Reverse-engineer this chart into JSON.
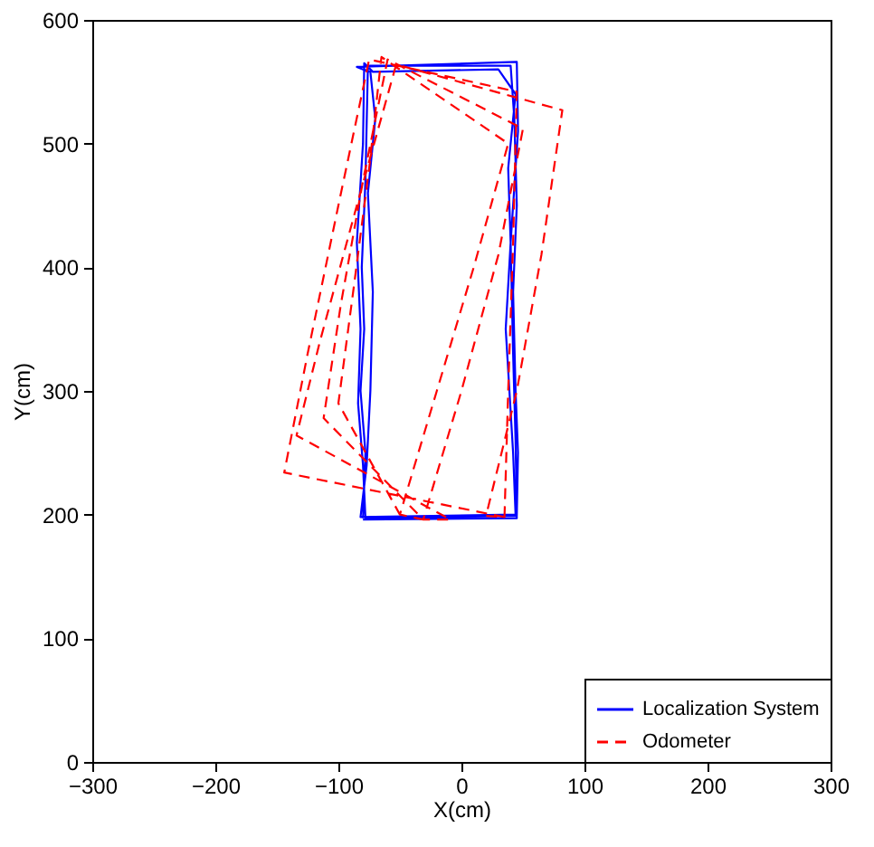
{
  "chart_data": {
    "type": "line",
    "xlabel": "X(cm)",
    "ylabel": "Y(cm)",
    "xlim": [
      -300,
      300
    ],
    "ylim": [
      0,
      600
    ],
    "xticks": [
      -300,
      -200,
      -100,
      0,
      100,
      200,
      300
    ],
    "yticks": [
      0,
      100,
      200,
      300,
      400,
      500,
      600
    ],
    "grid": false,
    "legend": "bottom right",
    "series": [
      {
        "name": "Localization System",
        "color": "#0000ff",
        "line_style": "solid",
        "x": [
          -80,
          -78,
          -82,
          -79,
          -81,
          -78,
          -76,
          40,
          43,
          45,
          42,
          44,
          46,
          45,
          -78,
          -80,
          -84,
          -82,
          -85,
          -80,
          -79,
          -72,
          30,
          44,
          38,
          40,
          36,
          42,
          44,
          -82,
          -77,
          -74,
          -72,
          -76,
          -70,
          -74,
          -80,
          -85,
          45,
          46,
          40,
          42,
          44,
          45,
          -80
        ],
        "values": [
          197,
          250,
          300,
          350,
          400,
          470,
          563,
          563,
          520,
          450,
          380,
          300,
          250,
          199,
          197,
          240,
          290,
          350,
          420,
          500,
          565,
          558,
          560,
          540,
          480,
          420,
          350,
          250,
          200,
          198,
          240,
          300,
          380,
          460,
          520,
          558,
          560,
          562,
          566,
          510,
          420,
          330,
          260,
          197,
          196
        ]
      },
      {
        "name": "Odometer",
        "color": "#ff0000",
        "line_style": "dashed",
        "x": [
          35,
          38,
          42,
          45,
          -75,
          -100,
          -125,
          -144,
          35,
          20,
          45,
          65,
          82,
          -53,
          -85,
          -115,
          -134,
          -9,
          -31,
          0,
          30,
          50,
          -60,
          -80,
          -98,
          -112,
          -31,
          -50,
          -20,
          10,
          38,
          -65,
          -75,
          -88,
          -100,
          -50
        ],
        "values": [
          198,
          300,
          420,
          542,
          568,
          450,
          330,
          234,
          198,
          199,
          300,
          410,
          527,
          564,
          450,
          340,
          264,
          196,
          196,
          300,
          410,
          512,
          568,
          470,
          370,
          278,
          196,
          200,
          300,
          400,
          500,
          570,
          480,
          380,
          290,
          200
        ]
      }
    ]
  }
}
